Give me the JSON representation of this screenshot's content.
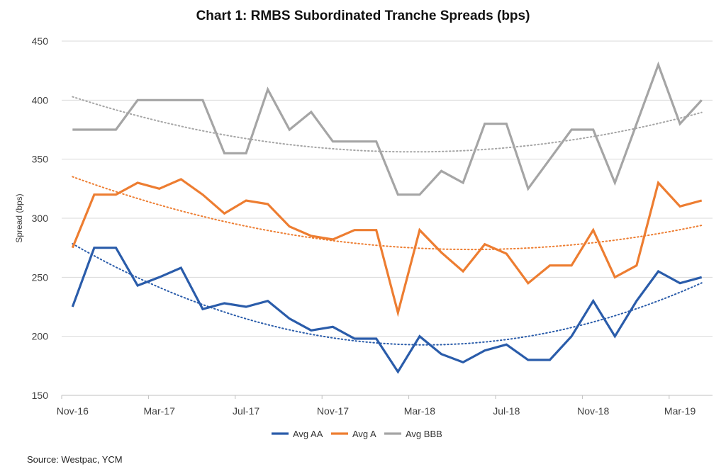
{
  "chart_data": {
    "type": "line",
    "title": "Chart 1: RMBS Subordinated Tranche Spreads (bps)",
    "ylabel": "Spread (bps)",
    "xlabel": "",
    "ylim": [
      150,
      450
    ],
    "yticks": [
      150,
      200,
      250,
      300,
      350,
      400,
      450
    ],
    "grid": true,
    "legend": "bottom",
    "x": [
      "Nov-16",
      "Dec-16",
      "Jan-17",
      "Feb-17",
      "Mar-17",
      "Apr-17",
      "May-17",
      "Jun-17",
      "Jul-17",
      "Aug-17",
      "Sep-17",
      "Oct-17",
      "Nov-17",
      "Dec-17",
      "Jan-18",
      "Feb-18",
      "Mar-18",
      "Apr-18",
      "May-18",
      "Jun-18",
      "Jul-18",
      "Aug-18",
      "Sep-18",
      "Oct-18",
      "Nov-18",
      "Dec-18",
      "Jan-19",
      "Feb-19",
      "Mar-19",
      "Apr-19"
    ],
    "xtick_labels": [
      "Nov-16",
      "Mar-17",
      "Jul-17",
      "Nov-17",
      "Mar-18",
      "Jul-18",
      "Nov-18",
      "Mar-19"
    ],
    "trendline": "polynomial order 2 (dotted)",
    "series": [
      {
        "name": "Avg AA",
        "color": "#2a5caa",
        "values": [
          225,
          275,
          275,
          243,
          250,
          258,
          223,
          228,
          225,
          230,
          215,
          205,
          208,
          198,
          198,
          170,
          200,
          185,
          178,
          188,
          193,
          180,
          180,
          200,
          230,
          200,
          230,
          255,
          245,
          250
        ]
      },
      {
        "name": "Avg A",
        "color": "#ed7d31",
        "values": [
          275,
          320,
          320,
          330,
          325,
          333,
          320,
          304,
          315,
          312,
          293,
          285,
          282,
          290,
          290,
          220,
          290,
          271,
          255,
          278,
          270,
          245,
          260,
          260,
          290,
          250,
          260,
          330,
          310,
          315
        ]
      },
      {
        "name": "Avg BBB",
        "color": "#a5a5a5",
        "values": [
          375,
          375,
          375,
          400,
          400,
          400,
          400,
          355,
          355,
          409,
          375,
          390,
          365,
          365,
          365,
          320,
          320,
          340,
          330,
          380,
          380,
          325,
          350,
          375,
          375,
          330,
          380,
          430,
          380,
          400
        ]
      }
    ]
  },
  "source": "Source: Westpac, YCM"
}
